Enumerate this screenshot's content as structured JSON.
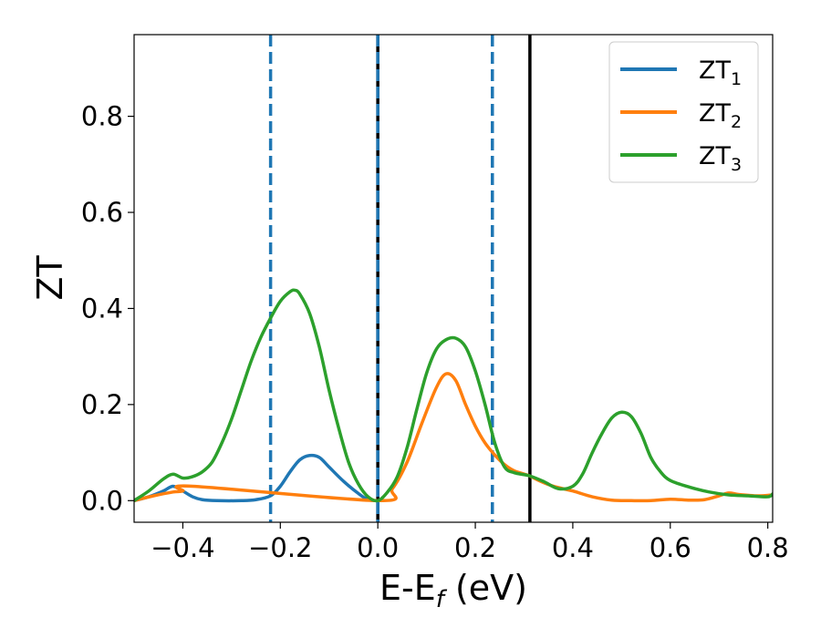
{
  "chart_data": {
    "type": "line",
    "title": "",
    "xlabel": {
      "base": "E-E",
      "sub": "f",
      "suffix": " (eV)"
    },
    "ylabel": "ZT",
    "xlim": [
      -0.5,
      0.81
    ],
    "ylim": [
      -0.045,
      0.97
    ],
    "x_ticks": [
      -0.4,
      -0.2,
      0.0,
      0.2,
      0.4,
      0.6,
      0.8
    ],
    "x_tick_labels": [
      "−0.4",
      "−0.2",
      "0.0",
      "0.2",
      "0.4",
      "0.6",
      "0.8"
    ],
    "y_ticks": [
      0.0,
      0.2,
      0.4,
      0.6,
      0.8
    ],
    "y_tick_labels": [
      "0.0",
      "0.2",
      "0.4",
      "0.6",
      "0.8"
    ],
    "grid": false,
    "legend_position": "top-right",
    "vertical_lines": [
      {
        "x": -0.22,
        "style": "dashed",
        "color": "#1f77b4"
      },
      {
        "x": 0.0,
        "style": "solid",
        "color": "#000000"
      },
      {
        "x": 0.0,
        "style": "dashed",
        "color": "#1f77b4"
      },
      {
        "x": 0.235,
        "style": "dashed",
        "color": "#1f77b4"
      },
      {
        "x": 0.312,
        "style": "solid",
        "color": "#000000"
      }
    ],
    "series": [
      {
        "name": {
          "base": "ZT",
          "sub": "1"
        },
        "color": "#1f77b4",
        "points": [
          [
            -0.5,
            0.0
          ],
          [
            -0.47,
            0.008
          ],
          [
            -0.44,
            0.02
          ],
          [
            -0.42,
            0.03
          ],
          [
            -0.4,
            0.02
          ],
          [
            -0.38,
            0.008
          ],
          [
            -0.36,
            0.002
          ],
          [
            -0.33,
            0.0
          ],
          [
            -0.28,
            0.0
          ],
          [
            -0.25,
            0.002
          ],
          [
            -0.22,
            0.01
          ],
          [
            -0.2,
            0.03
          ],
          [
            -0.18,
            0.06
          ],
          [
            -0.16,
            0.085
          ],
          [
            -0.14,
            0.094
          ],
          [
            -0.12,
            0.09
          ],
          [
            -0.1,
            0.07
          ],
          [
            -0.07,
            0.04
          ],
          [
            -0.04,
            0.015
          ],
          [
            -0.02,
            0.002
          ],
          [
            0.0,
            0.0
          ]
        ]
      },
      {
        "name": {
          "base": "ZT",
          "sub": "2"
        },
        "color": "#ff7f0e",
        "points": [
          [
            -0.5,
            0.0
          ],
          [
            -0.46,
            0.01
          ],
          [
            -0.42,
            0.018
          ],
          [
            -0.4,
            0.02
          ],
          [
            -0.38,
            0.03
          ],
          [
            0.0,
            0.0
          ],
          [
            0.03,
            0.025
          ],
          [
            0.06,
            0.08
          ],
          [
            0.09,
            0.16
          ],
          [
            0.12,
            0.235
          ],
          [
            0.14,
            0.264
          ],
          [
            0.16,
            0.25
          ],
          [
            0.18,
            0.2
          ],
          [
            0.2,
            0.155
          ],
          [
            0.22,
            0.12
          ],
          [
            0.24,
            0.095
          ],
          [
            0.26,
            0.075
          ],
          [
            0.28,
            0.062
          ],
          [
            0.31,
            0.052
          ],
          [
            0.33,
            0.042
          ],
          [
            0.36,
            0.03
          ],
          [
            0.4,
            0.02
          ],
          [
            0.44,
            0.008
          ],
          [
            0.48,
            0.001
          ],
          [
            0.52,
            0.0
          ],
          [
            0.56,
            0.0
          ],
          [
            0.6,
            0.003
          ],
          [
            0.64,
            0.001
          ],
          [
            0.67,
            0.002
          ],
          [
            0.7,
            0.01
          ],
          [
            0.72,
            0.016
          ],
          [
            0.74,
            0.013
          ],
          [
            0.78,
            0.01
          ],
          [
            0.81,
            0.012
          ]
        ]
      },
      {
        "name": {
          "base": "ZT",
          "sub": "3"
        },
        "color": "#2ca02c",
        "points": [
          [
            -0.5,
            0.0
          ],
          [
            -0.47,
            0.02
          ],
          [
            -0.44,
            0.045
          ],
          [
            -0.42,
            0.055
          ],
          [
            -0.4,
            0.047
          ],
          [
            -0.38,
            0.05
          ],
          [
            -0.36,
            0.06
          ],
          [
            -0.34,
            0.08
          ],
          [
            -0.32,
            0.12
          ],
          [
            -0.3,
            0.17
          ],
          [
            -0.28,
            0.23
          ],
          [
            -0.26,
            0.29
          ],
          [
            -0.24,
            0.34
          ],
          [
            -0.22,
            0.38
          ],
          [
            -0.2,
            0.415
          ],
          [
            -0.18,
            0.435
          ],
          [
            -0.17,
            0.438
          ],
          [
            -0.16,
            0.43
          ],
          [
            -0.14,
            0.39
          ],
          [
            -0.12,
            0.32
          ],
          [
            -0.1,
            0.23
          ],
          [
            -0.08,
            0.15
          ],
          [
            -0.06,
            0.08
          ],
          [
            -0.04,
            0.035
          ],
          [
            -0.02,
            0.008
          ],
          [
            0.0,
            0.0
          ],
          [
            0.02,
            0.018
          ],
          [
            0.04,
            0.05
          ],
          [
            0.06,
            0.11
          ],
          [
            0.08,
            0.19
          ],
          [
            0.1,
            0.265
          ],
          [
            0.12,
            0.315
          ],
          [
            0.14,
            0.335
          ],
          [
            0.16,
            0.338
          ],
          [
            0.18,
            0.32
          ],
          [
            0.2,
            0.27
          ],
          [
            0.22,
            0.2
          ],
          [
            0.24,
            0.12
          ],
          [
            0.26,
            0.07
          ],
          [
            0.28,
            0.058
          ],
          [
            0.31,
            0.052
          ],
          [
            0.34,
            0.04
          ],
          [
            0.37,
            0.025
          ],
          [
            0.4,
            0.03
          ],
          [
            0.42,
            0.055
          ],
          [
            0.44,
            0.1
          ],
          [
            0.46,
            0.14
          ],
          [
            0.48,
            0.172
          ],
          [
            0.5,
            0.184
          ],
          [
            0.52,
            0.175
          ],
          [
            0.54,
            0.14
          ],
          [
            0.56,
            0.09
          ],
          [
            0.58,
            0.06
          ],
          [
            0.6,
            0.042
          ],
          [
            0.64,
            0.028
          ],
          [
            0.68,
            0.018
          ],
          [
            0.72,
            0.012
          ],
          [
            0.76,
            0.01
          ],
          [
            0.8,
            0.008
          ],
          [
            0.81,
            0.014
          ]
        ]
      }
    ]
  }
}
